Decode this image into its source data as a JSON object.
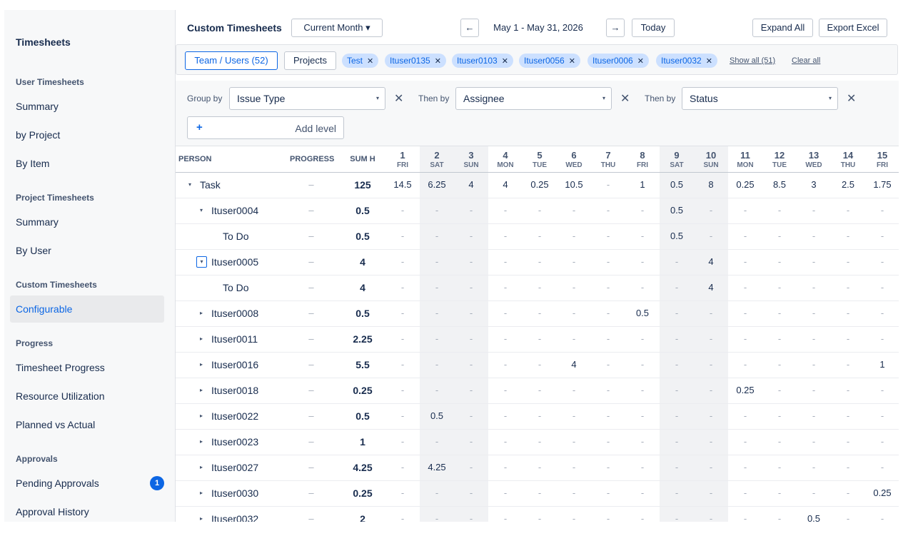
{
  "sidebar": {
    "title": "Timesheets",
    "sections": [
      {
        "label": "User Timesheets",
        "items": [
          {
            "label": "Summary"
          },
          {
            "label": "by Project"
          },
          {
            "label": "By Item"
          }
        ]
      },
      {
        "label": "Project Timesheets",
        "items": [
          {
            "label": "Summary"
          },
          {
            "label": "By User"
          }
        ]
      },
      {
        "label": "Custom Timesheets",
        "items": [
          {
            "label": "Configurable",
            "active": true
          }
        ]
      },
      {
        "label": "Progress",
        "items": [
          {
            "label": "Timesheet Progress"
          },
          {
            "label": "Resource Utilization"
          },
          {
            "label": "Planned vs Actual"
          }
        ]
      },
      {
        "label": "Approvals",
        "items": [
          {
            "label": "Pending Approvals",
            "badge": "1"
          },
          {
            "label": "Approval History"
          }
        ]
      }
    ]
  },
  "header": {
    "title": "Custom Timesheets",
    "period": "Current Month ▾",
    "prev_icon": "←",
    "next_icon": "→",
    "date_range": "May 1 - May 31, 2026",
    "today": "Today",
    "expand_all": "Expand All",
    "export": "Export Excel"
  },
  "filters": {
    "team_users": "Team / Users  (52)",
    "projects": "Projects",
    "chips": [
      "Test",
      "Ituser0135",
      "Ituser0103",
      "Ituser0056",
      "Ituser0006",
      "Ituser0032"
    ],
    "show_all": "Show all (51)",
    "clear_all": "Clear all"
  },
  "grouping": {
    "group_by_label": "Group by",
    "group_by_value": "Issue Type",
    "then_by_label": "Then by",
    "then_by_1": "Assignee",
    "then_by_2": "Status",
    "add_level": "Add level"
  },
  "table": {
    "headers": {
      "person": "PERSON",
      "progress": "PROGRESS",
      "sum": "SUM H"
    },
    "days": [
      {
        "n": "1",
        "d": "FRI"
      },
      {
        "n": "2",
        "d": "SAT",
        "w": true
      },
      {
        "n": "3",
        "d": "SUN",
        "w": true
      },
      {
        "n": "4",
        "d": "MON"
      },
      {
        "n": "5",
        "d": "TUE"
      },
      {
        "n": "6",
        "d": "WED"
      },
      {
        "n": "7",
        "d": "THU"
      },
      {
        "n": "8",
        "d": "FRI"
      },
      {
        "n": "9",
        "d": "SAT",
        "w": true
      },
      {
        "n": "10",
        "d": "SUN",
        "w": true
      },
      {
        "n": "11",
        "d": "MON"
      },
      {
        "n": "12",
        "d": "TUE"
      },
      {
        "n": "13",
        "d": "WED"
      },
      {
        "n": "14",
        "d": "THU"
      },
      {
        "n": "15",
        "d": "FRI"
      }
    ],
    "rows": [
      {
        "name": "Task",
        "level": 0,
        "toggle": "down",
        "progress": "–",
        "sum": "125",
        "cells": [
          "14.5",
          "6.25",
          "4",
          "4",
          "0.25",
          "10.5",
          "-",
          "1",
          "0.5",
          "8",
          "0.25",
          "8.5",
          "3",
          "2.5",
          "1.75"
        ]
      },
      {
        "name": "Ituser0004",
        "level": 1,
        "toggle": "down",
        "progress": "–",
        "sum": "0.5",
        "cells": [
          "-",
          "-",
          "-",
          "-",
          "-",
          "-",
          "-",
          "-",
          "0.5",
          "-",
          "-",
          "-",
          "-",
          "-",
          "-"
        ]
      },
      {
        "name": "To Do",
        "level": 2,
        "progress": "–",
        "sum": "0.5",
        "cells": [
          "-",
          "-",
          "-",
          "-",
          "-",
          "-",
          "-",
          "-",
          "0.5",
          "-",
          "-",
          "-",
          "-",
          "-",
          "-"
        ]
      },
      {
        "name": "Ituser0005",
        "level": 1,
        "toggle": "down",
        "focus": true,
        "progress": "–",
        "sum": "4",
        "cells": [
          "-",
          "-",
          "-",
          "-",
          "-",
          "-",
          "-",
          "-",
          "-",
          "4",
          "-",
          "-",
          "-",
          "-",
          "-"
        ]
      },
      {
        "name": "To Do",
        "level": 2,
        "progress": "–",
        "sum": "4",
        "cells": [
          "-",
          "-",
          "-",
          "-",
          "-",
          "-",
          "-",
          "-",
          "-",
          "4",
          "-",
          "-",
          "-",
          "-",
          "-"
        ]
      },
      {
        "name": "Ituser0008",
        "level": 1,
        "toggle": "right",
        "progress": "–",
        "sum": "0.5",
        "cells": [
          "-",
          "-",
          "-",
          "-",
          "-",
          "-",
          "-",
          "0.5",
          "-",
          "-",
          "-",
          "-",
          "-",
          "-",
          "-"
        ]
      },
      {
        "name": "Ituser0011",
        "level": 1,
        "toggle": "right",
        "progress": "–",
        "sum": "2.25",
        "cells": [
          "-",
          "-",
          "-",
          "-",
          "-",
          "-",
          "-",
          "-",
          "-",
          "-",
          "-",
          "-",
          "-",
          "-",
          "-"
        ]
      },
      {
        "name": "Ituser0016",
        "level": 1,
        "toggle": "right",
        "progress": "–",
        "sum": "5.5",
        "cells": [
          "-",
          "-",
          "-",
          "-",
          "-",
          "4",
          "-",
          "-",
          "-",
          "-",
          "-",
          "-",
          "-",
          "-",
          "1"
        ]
      },
      {
        "name": "Ituser0018",
        "level": 1,
        "toggle": "right",
        "progress": "–",
        "sum": "0.25",
        "cells": [
          "-",
          "-",
          "-",
          "-",
          "-",
          "-",
          "-",
          "-",
          "-",
          "-",
          "0.25",
          "-",
          "-",
          "-",
          "-"
        ]
      },
      {
        "name": "Ituser0022",
        "level": 1,
        "toggle": "right",
        "progress": "–",
        "sum": "0.5",
        "cells": [
          "-",
          "0.5",
          "-",
          "-",
          "-",
          "-",
          "-",
          "-",
          "-",
          "-",
          "-",
          "-",
          "-",
          "-",
          "-"
        ]
      },
      {
        "name": "Ituser0023",
        "level": 1,
        "toggle": "right",
        "progress": "–",
        "sum": "1",
        "cells": [
          "-",
          "-",
          "-",
          "-",
          "-",
          "-",
          "-",
          "-",
          "-",
          "-",
          "-",
          "-",
          "-",
          "-",
          "-"
        ]
      },
      {
        "name": "Ituser0027",
        "level": 1,
        "toggle": "right",
        "progress": "–",
        "sum": "4.25",
        "cells": [
          "-",
          "4.25",
          "-",
          "-",
          "-",
          "-",
          "-",
          "-",
          "-",
          "-",
          "-",
          "-",
          "-",
          "-",
          "-"
        ]
      },
      {
        "name": "Ituser0030",
        "level": 1,
        "toggle": "right",
        "progress": "–",
        "sum": "0.25",
        "cells": [
          "-",
          "-",
          "-",
          "-",
          "-",
          "-",
          "-",
          "-",
          "-",
          "-",
          "-",
          "-",
          "-",
          "-",
          "0.25"
        ]
      },
      {
        "name": "Ituser0032",
        "level": 1,
        "toggle": "right",
        "progress": "–",
        "sum": "2",
        "cells": [
          "-",
          "-",
          "-",
          "-",
          "-",
          "-",
          "-",
          "-",
          "-",
          "-",
          "-",
          "-",
          "0.5",
          "-",
          "-"
        ]
      }
    ]
  },
  "colors": {
    "accent": "#0c66e4",
    "chip_bg": "#cce0ff",
    "weekend_bg": "#f1f2f4"
  }
}
